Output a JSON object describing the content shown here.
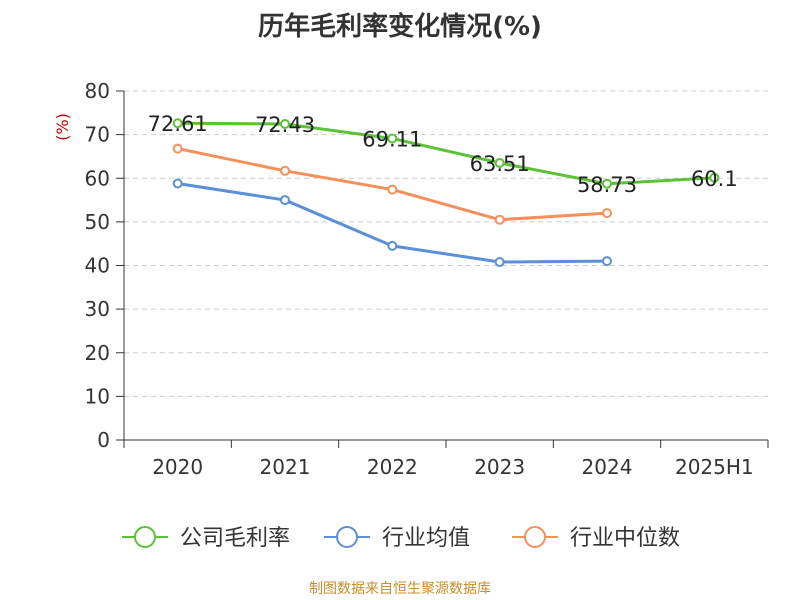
{
  "chart_data": {
    "type": "line",
    "title": "历年毛利率变化情况(%)",
    "ylabel": "(%)",
    "xlabel": "",
    "categories": [
      "2020",
      "2021",
      "2022",
      "2023",
      "2024",
      "2025H1"
    ],
    "ylim": [
      0,
      80
    ],
    "yticks": [
      "0",
      "10",
      "20",
      "30",
      "40",
      "50",
      "60",
      "70",
      "80"
    ],
    "grid": "horizontal dashed",
    "legend_position": "bottom",
    "series": [
      {
        "name": "公司毛利率",
        "color": "#5ac234",
        "values": [
          72.61,
          72.43,
          69.11,
          63.51,
          58.73,
          60.1
        ],
        "labels": [
          "72.61",
          "72.43",
          "69.11",
          "63.51",
          "58.73",
          "60.1"
        ]
      },
      {
        "name": "行业均值",
        "color": "#5b8fd9",
        "values": [
          58.8,
          55.0,
          44.5,
          40.8,
          41.0,
          null
        ]
      },
      {
        "name": "行业中位数",
        "color": "#f78f5b",
        "values": [
          66.8,
          61.7,
          57.4,
          50.5,
          52.0,
          null
        ]
      }
    ]
  },
  "footer": {
    "source": "制图数据来自恒生聚源数据库"
  }
}
